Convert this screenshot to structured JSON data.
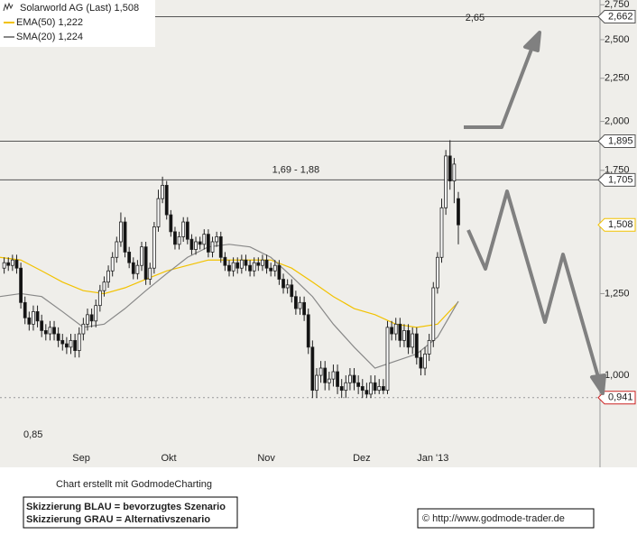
{
  "chart_data": {
    "type": "candlestick",
    "log_scale": true,
    "xlim": [
      0,
      144
    ],
    "ylim": [
      0.778,
      2.786
    ],
    "xticks": [
      {
        "value": 19.5,
        "label": "Sep"
      },
      {
        "value": 40.5,
        "label": "Okt"
      },
      {
        "value": 63.9,
        "label": "Nov"
      },
      {
        "value": 86.8,
        "label": "Dez"
      },
      {
        "value": 103.9,
        "label": "Jan '13"
      }
    ],
    "yticks": [
      {
        "value": 2.75,
        "label": "2,750"
      },
      {
        "value": 2.5,
        "label": "2,500"
      },
      {
        "value": 2.25,
        "label": "2,250"
      },
      {
        "value": 2.0,
        "label": "2,000"
      },
      {
        "value": 1.75,
        "label": "1,750"
      },
      {
        "value": 1.25,
        "label": "1,250"
      },
      {
        "value": 1.0,
        "label": "1,000"
      }
    ],
    "left_tick": {
      "value": 0.85,
      "label": "0,85"
    },
    "price": {
      "name": "Solarworld AG (Last) 1,508",
      "up_color": "#ffffff",
      "down_color": "#111111",
      "x": [
        1,
        2,
        3,
        4,
        5,
        6,
        7,
        8,
        9,
        10,
        11,
        12,
        13,
        14,
        15,
        16,
        17,
        18,
        19,
        20,
        21,
        22,
        23,
        24,
        25,
        26,
        27,
        28,
        29,
        30,
        31,
        32,
        33,
        34,
        35,
        36,
        37,
        38,
        39,
        40,
        41,
        42,
        43,
        44,
        45,
        46,
        47,
        48,
        49,
        50,
        51,
        52,
        53,
        54,
        55,
        56,
        57,
        58,
        59,
        60,
        61,
        62,
        63,
        64,
        65,
        66,
        67,
        68,
        69,
        70,
        71,
        72,
        73,
        74,
        75,
        76,
        77,
        78,
        79,
        80,
        81,
        82,
        83,
        84,
        85,
        86,
        87,
        88,
        89,
        90,
        91,
        92,
        93,
        94,
        95,
        96,
        97,
        98,
        99,
        100,
        101,
        102,
        103,
        104,
        105,
        106,
        107,
        108,
        109,
        110
      ],
      "open": [
        1.34,
        1.36,
        1.35,
        1.37,
        1.34,
        1.22,
        1.17,
        1.15,
        1.19,
        1.16,
        1.13,
        1.12,
        1.14,
        1.12,
        1.1,
        1.09,
        1.08,
        1.1,
        1.07,
        1.12,
        1.15,
        1.18,
        1.16,
        1.21,
        1.26,
        1.29,
        1.33,
        1.38,
        1.44,
        1.52,
        1.4,
        1.36,
        1.32,
        1.35,
        1.42,
        1.3,
        1.34,
        1.5,
        1.62,
        1.68,
        1.55,
        1.48,
        1.43,
        1.46,
        1.52,
        1.45,
        1.41,
        1.44,
        1.43,
        1.47,
        1.4,
        1.44,
        1.46,
        1.38,
        1.35,
        1.33,
        1.36,
        1.34,
        1.37,
        1.35,
        1.33,
        1.36,
        1.35,
        1.37,
        1.34,
        1.33,
        1.35,
        1.3,
        1.27,
        1.28,
        1.24,
        1.2,
        1.22,
        1.18,
        1.08,
        0.96,
        1.0,
        1.02,
        0.98,
        0.99,
        1.01,
        0.97,
        0.96,
        0.98,
        1.0,
        0.98,
        0.97,
        0.96,
        0.95,
        0.98,
        0.96,
        0.97,
        0.96,
        1.14,
        1.12,
        1.15,
        1.1,
        1.13,
        1.08,
        1.12,
        1.05,
        1.02,
        1.06,
        1.1,
        1.27,
        1.38,
        1.58,
        1.82,
        1.7,
        1.62
      ],
      "high": [
        1.38,
        1.38,
        1.39,
        1.39,
        1.36,
        1.24,
        1.19,
        1.21,
        1.21,
        1.18,
        1.15,
        1.16,
        1.16,
        1.14,
        1.12,
        1.11,
        1.12,
        1.12,
        1.14,
        1.17,
        1.2,
        1.2,
        1.23,
        1.28,
        1.31,
        1.35,
        1.4,
        1.46,
        1.56,
        1.54,
        1.42,
        1.38,
        1.37,
        1.44,
        1.44,
        1.36,
        1.52,
        1.66,
        1.72,
        1.7,
        1.57,
        1.5,
        1.48,
        1.54,
        1.54,
        1.47,
        1.46,
        1.46,
        1.49,
        1.49,
        1.46,
        1.48,
        1.48,
        1.4,
        1.37,
        1.38,
        1.38,
        1.39,
        1.39,
        1.37,
        1.38,
        1.38,
        1.39,
        1.39,
        1.36,
        1.37,
        1.37,
        1.32,
        1.3,
        1.3,
        1.26,
        1.24,
        1.24,
        1.2,
        1.1,
        1.02,
        1.04,
        1.04,
        1.01,
        1.03,
        1.03,
        0.99,
        1.0,
        1.02,
        1.02,
        1.0,
        0.99,
        0.98,
        1.0,
        1.0,
        0.99,
        0.99,
        1.16,
        1.16,
        1.17,
        1.17,
        1.15,
        1.15,
        1.14,
        1.14,
        1.07,
        1.08,
        1.12,
        1.29,
        1.4,
        1.62,
        1.85,
        1.9,
        1.81,
        1.65
      ],
      "low": [
        1.32,
        1.33,
        1.33,
        1.32,
        1.2,
        1.15,
        1.13,
        1.13,
        1.14,
        1.11,
        1.1,
        1.1,
        1.1,
        1.08,
        1.07,
        1.06,
        1.06,
        1.05,
        1.05,
        1.1,
        1.13,
        1.14,
        1.14,
        1.19,
        1.24,
        1.27,
        1.31,
        1.36,
        1.42,
        1.38,
        1.34,
        1.3,
        1.3,
        1.33,
        1.28,
        1.28,
        1.32,
        1.48,
        1.6,
        1.53,
        1.46,
        1.41,
        1.41,
        1.44,
        1.43,
        1.39,
        1.39,
        1.41,
        1.41,
        1.38,
        1.38,
        1.42,
        1.36,
        1.33,
        1.31,
        1.31,
        1.32,
        1.32,
        1.33,
        1.31,
        1.31,
        1.33,
        1.33,
        1.32,
        1.31,
        1.31,
        1.28,
        1.25,
        1.25,
        1.22,
        1.18,
        1.18,
        1.16,
        1.06,
        0.94,
        0.94,
        0.98,
        0.96,
        0.96,
        0.97,
        0.95,
        0.94,
        0.94,
        0.96,
        0.96,
        0.95,
        0.94,
        0.94,
        0.94,
        0.95,
        0.95,
        0.95,
        0.95,
        1.1,
        1.1,
        1.08,
        1.08,
        1.06,
        1.06,
        1.03,
        1.0,
        1.0,
        1.04,
        1.08,
        1.25,
        1.36,
        1.55,
        1.66,
        1.6,
        1.43
      ],
      "close": [
        1.36,
        1.35,
        1.37,
        1.34,
        1.22,
        1.17,
        1.15,
        1.19,
        1.16,
        1.13,
        1.12,
        1.14,
        1.12,
        1.1,
        1.09,
        1.08,
        1.1,
        1.07,
        1.12,
        1.15,
        1.18,
        1.16,
        1.21,
        1.26,
        1.29,
        1.33,
        1.38,
        1.44,
        1.52,
        1.4,
        1.36,
        1.32,
        1.35,
        1.42,
        1.3,
        1.34,
        1.5,
        1.62,
        1.68,
        1.55,
        1.48,
        1.43,
        1.46,
        1.52,
        1.45,
        1.41,
        1.44,
        1.43,
        1.47,
        1.4,
        1.44,
        1.46,
        1.38,
        1.35,
        1.33,
        1.36,
        1.34,
        1.37,
        1.35,
        1.33,
        1.36,
        1.35,
        1.37,
        1.34,
        1.33,
        1.35,
        1.3,
        1.27,
        1.28,
        1.24,
        1.2,
        1.22,
        1.18,
        1.08,
        0.96,
        1.0,
        1.02,
        0.98,
        0.99,
        1.01,
        0.97,
        0.96,
        0.98,
        1.0,
        0.98,
        0.97,
        0.96,
        0.95,
        0.98,
        0.96,
        0.97,
        0.96,
        1.14,
        1.12,
        1.15,
        1.1,
        1.13,
        1.08,
        1.12,
        1.05,
        1.02,
        1.06,
        1.1,
        1.27,
        1.38,
        1.58,
        1.82,
        1.7,
        1.78,
        1.508
      ]
    },
    "series": [
      {
        "name": "EMA(50) 1,222",
        "color": "#f2c200",
        "x": [
          0,
          5,
          10,
          15,
          20,
          25,
          30,
          35,
          40,
          45,
          50,
          55,
          60,
          65,
          70,
          75,
          80,
          85,
          90,
          95,
          100,
          105,
          110
        ],
        "values": [
          1.38,
          1.37,
          1.33,
          1.29,
          1.26,
          1.25,
          1.27,
          1.3,
          1.33,
          1.35,
          1.37,
          1.37,
          1.37,
          1.37,
          1.34,
          1.29,
          1.24,
          1.2,
          1.18,
          1.15,
          1.14,
          1.15,
          1.222
        ]
      },
      {
        "name": "SMA(20) 1,224",
        "color": "#888888",
        "x": [
          0,
          5,
          10,
          15,
          20,
          25,
          30,
          35,
          40,
          45,
          50,
          55,
          60,
          65,
          70,
          75,
          80,
          85,
          90,
          95,
          100,
          105,
          110
        ],
        "values": [
          1.24,
          1.25,
          1.24,
          1.19,
          1.14,
          1.15,
          1.2,
          1.26,
          1.32,
          1.38,
          1.42,
          1.43,
          1.42,
          1.38,
          1.31,
          1.24,
          1.15,
          1.08,
          1.02,
          1.04,
          1.06,
          1.11,
          1.224
        ]
      }
    ],
    "price_markers": [
      {
        "value": 2.662,
        "label": "2,662",
        "line": "solid",
        "color": "#555555"
      },
      {
        "value": 1.895,
        "label": "1,895",
        "line": "solid",
        "color": "#555555"
      },
      {
        "value": 1.705,
        "label": "1,705",
        "line": "solid",
        "color": "#555555"
      },
      {
        "value": 1.508,
        "label": "1,508",
        "color": "#f2c200"
      },
      {
        "value": 0.941,
        "label": "0,941",
        "line": "dotted",
        "color": "#cc2222"
      }
    ],
    "annotations": [
      {
        "text": "2,65",
        "x": 114,
        "y": 2.65
      },
      {
        "text": "1,69 - 1,88",
        "x": 71,
        "y": 1.75
      }
    ]
  },
  "footer": {
    "credit": "Chart erstellt mit GodmodeCharting",
    "legend_box": [
      "Skizzierung BLAU = bevorzugtes Szenario",
      "Skizzierung GRAU = Alternativszenario"
    ],
    "copyright": "© http://www.godmode-trader.de"
  }
}
